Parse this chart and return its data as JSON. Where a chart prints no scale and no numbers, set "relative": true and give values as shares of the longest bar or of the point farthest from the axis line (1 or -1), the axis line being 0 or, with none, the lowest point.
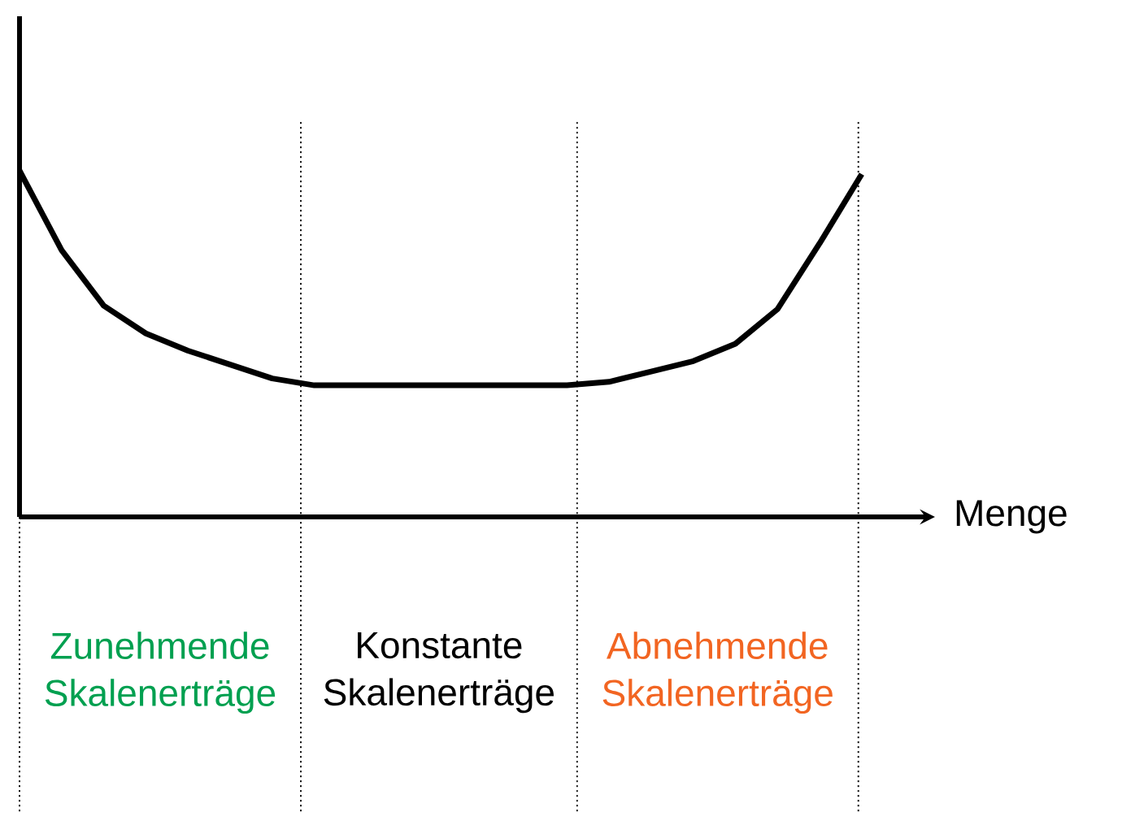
{
  "chart_data": {
    "type": "line",
    "relative": true,
    "xlabel": "Menge",
    "categories": [
      null,
      null,
      null,
      null,
      null,
      null,
      null,
      null,
      null,
      null,
      null,
      null,
      null,
      null,
      null,
      null,
      null,
      null,
      null,
      null,
      null
    ],
    "series": [
      {
        "color": "#000000",
        "values": [
          1,
          0.77,
          0.61,
          0.53,
          0.48,
          0.44,
          0.4,
          0.38,
          0.38,
          0.38,
          0.38,
          0.38,
          0.38,
          0.38,
          0.39,
          0.42,
          0.45,
          0.5,
          0.6,
          0.79,
          0.99
        ]
      }
    ],
    "annotations": [
      "Zunehmende Skalenerträge",
      "Konstante Skalenerträge",
      "Abnehmende Skalenerträge"
    ],
    "marker": "none",
    "line_style": "solid"
  }
}
